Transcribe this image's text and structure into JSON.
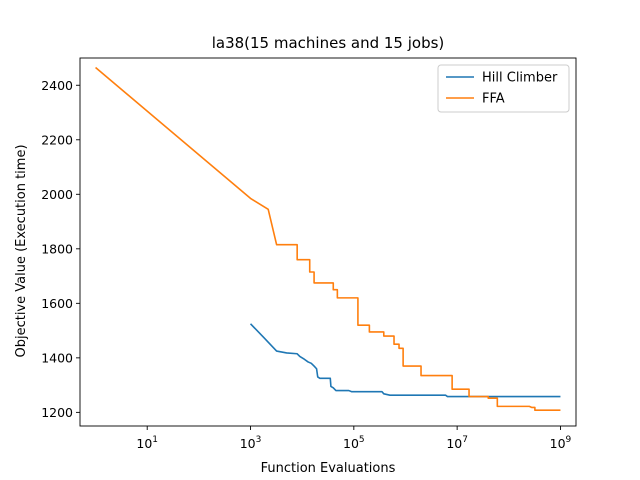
{
  "chart_data": {
    "type": "line",
    "title": "la38(15 machines and 15 jobs)",
    "xlabel": "Function Evaluations",
    "ylabel": "Objective Value (Execution time)",
    "xscale": "log",
    "xlim": [
      0.5,
      2000000000
    ],
    "ylim": [
      1150,
      2500
    ],
    "xticks": [
      {
        "value": 10,
        "base": "10",
        "exp": "1"
      },
      {
        "value": 1000,
        "base": "10",
        "exp": "3"
      },
      {
        "value": 100000,
        "base": "10",
        "exp": "5"
      },
      {
        "value": 10000000,
        "base": "10",
        "exp": "7"
      },
      {
        "value": 1000000000,
        "base": "10",
        "exp": "9"
      }
    ],
    "yticks": [
      1200,
      1400,
      1600,
      1800,
      2000,
      2200,
      2400
    ],
    "grid": false,
    "legend_position": "top-right",
    "series": [
      {
        "name": "Hill Climber",
        "color": "#1f77b4",
        "points": [
          [
            1000,
            1525
          ],
          [
            1800,
            1475
          ],
          [
            3200,
            1425
          ],
          [
            5000,
            1418
          ],
          [
            8000,
            1415
          ],
          [
            9000,
            1405
          ],
          [
            11000,
            1395
          ],
          [
            13000,
            1385
          ],
          [
            15000,
            1380
          ],
          [
            17000,
            1370
          ],
          [
            19000,
            1360
          ],
          [
            20000,
            1330
          ],
          [
            22000,
            1325
          ],
          [
            30000,
            1325
          ],
          [
            35000,
            1325
          ],
          [
            36000,
            1295
          ],
          [
            40000,
            1290
          ],
          [
            45000,
            1280
          ],
          [
            80000,
            1280
          ],
          [
            90000,
            1276
          ],
          [
            350000,
            1276
          ],
          [
            380000,
            1268
          ],
          [
            500000,
            1263
          ],
          [
            6000000,
            1263
          ],
          [
            6500000,
            1258
          ],
          [
            1000000000,
            1258
          ]
        ]
      },
      {
        "name": "FFA",
        "color": "#ff7f0e",
        "points": [
          [
            1,
            2465
          ],
          [
            1000,
            1985
          ],
          [
            2200,
            1945
          ],
          [
            3200,
            1815
          ],
          [
            8000,
            1815
          ],
          [
            8000,
            1760
          ],
          [
            14000,
            1760
          ],
          [
            14000,
            1715
          ],
          [
            17000,
            1715
          ],
          [
            17000,
            1675
          ],
          [
            40000,
            1675
          ],
          [
            40000,
            1650
          ],
          [
            48000,
            1650
          ],
          [
            48000,
            1620
          ],
          [
            120000,
            1620
          ],
          [
            120000,
            1520
          ],
          [
            200000,
            1520
          ],
          [
            200000,
            1495
          ],
          [
            380000,
            1495
          ],
          [
            380000,
            1480
          ],
          [
            600000,
            1480
          ],
          [
            600000,
            1450
          ],
          [
            750000,
            1450
          ],
          [
            750000,
            1435
          ],
          [
            900000,
            1435
          ],
          [
            900000,
            1370
          ],
          [
            2000000,
            1370
          ],
          [
            2000000,
            1335
          ],
          [
            8000000,
            1335
          ],
          [
            8000000,
            1285
          ],
          [
            17000000,
            1285
          ],
          [
            17000000,
            1258
          ],
          [
            40000000,
            1258
          ],
          [
            40000000,
            1252
          ],
          [
            60000000,
            1252
          ],
          [
            60000000,
            1222
          ],
          [
            250000000,
            1222
          ],
          [
            280000000,
            1218
          ],
          [
            320000000,
            1218
          ],
          [
            320000000,
            1208
          ],
          [
            1000000000,
            1208
          ]
        ]
      }
    ]
  }
}
